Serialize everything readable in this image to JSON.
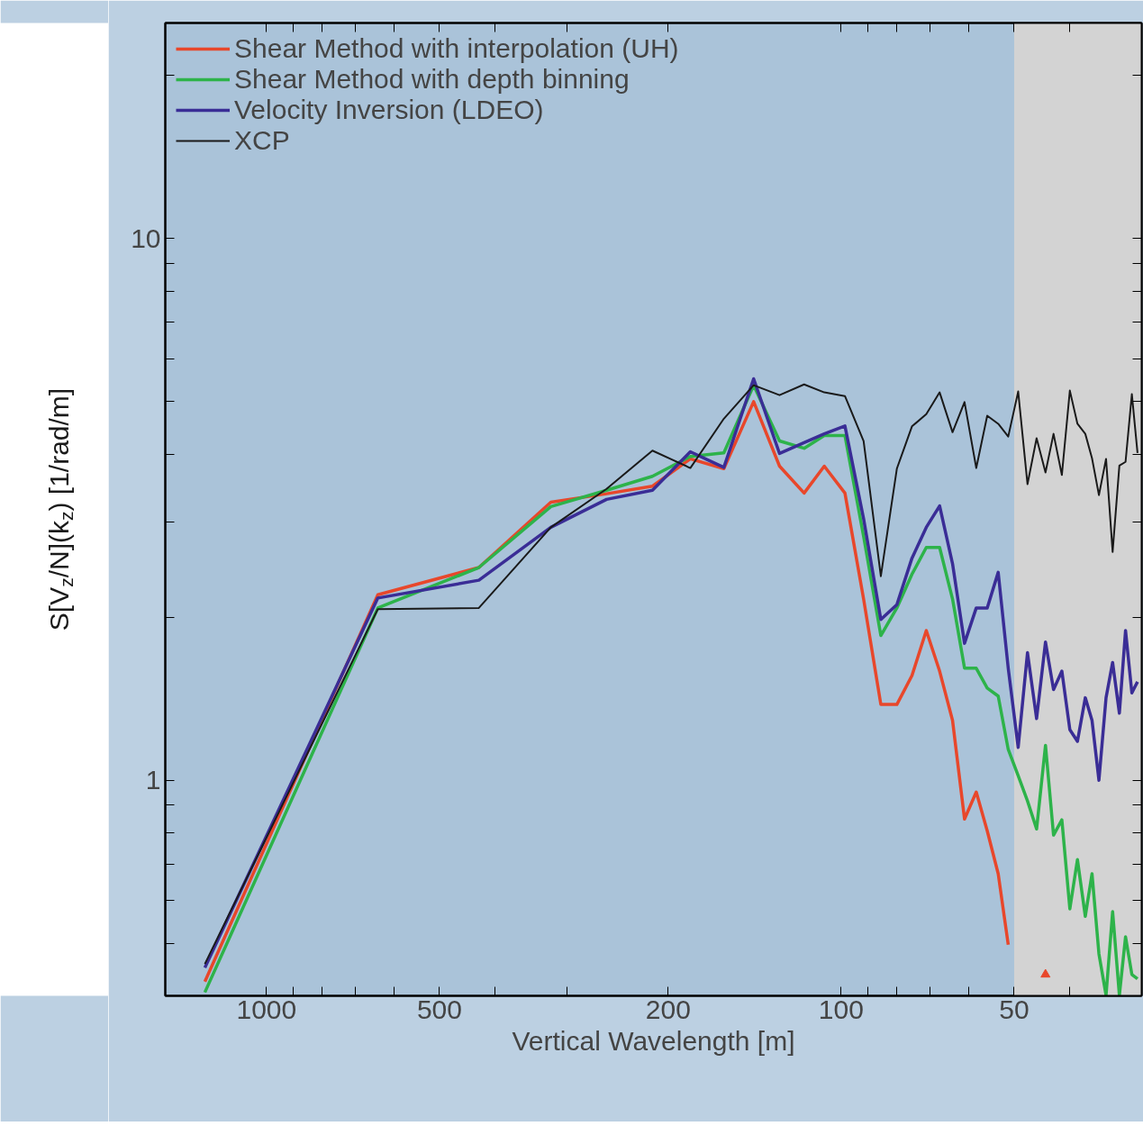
{
  "chart_data": {
    "type": "line",
    "xlabel": "Vertical Wavelength [m]",
    "ylabel": "S[V$_{z}$/N](k$_{z}$) [1/rad/m]",
    "log": "xy",
    "grid": false,
    "legend": "top left",
    "marker": "none",
    "line_style": "solid",
    "xlim": [
      1500,
      30
    ],
    "ylim": [
      0.4,
      25
    ],
    "xticks": [
      1000,
      500,
      200,
      100,
      50,
      {
        "value": 900,
        "label": null
      },
      {
        "value": 800,
        "label": null
      },
      {
        "value": 700,
        "label": null
      },
      {
        "value": 600,
        "label": null
      },
      {
        "value": 400,
        "label": null
      },
      {
        "value": 300,
        "label": null
      },
      {
        "value": 90,
        "label": null
      },
      {
        "value": 80,
        "label": null
      },
      {
        "value": 70,
        "label": null
      },
      {
        "value": 60,
        "label": null
      },
      {
        "value": 40,
        "label": null
      }
    ],
    "yticks": [
      1,
      10,
      {
        "value": 0.5,
        "label": null
      },
      {
        "value": 0.6,
        "label": null
      },
      {
        "value": 0.7,
        "label": null
      },
      {
        "value": 0.8,
        "label": null
      },
      {
        "value": 0.9,
        "label": null
      },
      {
        "value": 2,
        "label": null
      },
      {
        "value": 3,
        "label": null
      },
      {
        "value": 4,
        "label": null
      },
      {
        "value": 5,
        "label": null
      },
      {
        "value": 6,
        "label": null
      },
      {
        "value": 7,
        "label": null
      },
      {
        "value": 8,
        "label": null
      },
      {
        "value": 9,
        "label": null
      },
      {
        "value": 20,
        "label": null
      }
    ],
    "bands": [
      {
        "axis": "x",
        "from": 50,
        "to": 30,
        "color": "#d3d3d3"
      }
    ],
    "x": [
      1280,
      640,
      427,
      320,
      256,
      213,
      183,
      160,
      142,
      128,
      116,
      107,
      98.5,
      91.4,
      85.3,
      80,
      75.3,
      71.1,
      67.4,
      64,
      61,
      58.2,
      55.7,
      53.3,
      51.2,
      49.2,
      47.4,
      45.7,
      44.1,
      42.7,
      41.3,
      40,
      38.8,
      37.6,
      36.6,
      35.6,
      34.6,
      33.7,
      32.8,
      32,
      31.2,
      30.5
    ],
    "series": [
      {
        "name": "Shear Method with interpolation (UH)",
        "color": "#e8472b",
        "values": [
          0.425,
          2.2,
          2.47,
          3.26,
          3.38,
          3.49,
          3.92,
          3.76,
          5.0,
          3.8,
          3.39,
          3.8,
          3.39,
          2.16,
          1.38,
          1.38,
          1.56,
          1.89,
          1.59,
          1.29,
          0.848,
          0.951,
          0.807,
          0.672,
          0.497,
          null,
          null,
          null,
          0.438,
          null,
          null,
          null,
          null,
          null,
          null,
          null,
          null,
          null,
          null,
          null,
          null,
          null
        ]
      },
      {
        "name": "Shear Method with depth binning",
        "color": "#2db34a",
        "values": [
          0.406,
          2.08,
          2.47,
          3.2,
          3.43,
          3.64,
          3.96,
          4.02,
          5.36,
          4.23,
          4.1,
          4.33,
          4.33,
          2.82,
          1.85,
          2.08,
          2.4,
          2.69,
          2.69,
          2.16,
          1.61,
          1.61,
          1.48,
          1.43,
          1.14,
          1.02,
          0.916,
          0.813,
          1.16,
          0.792,
          0.845,
          0.579,
          0.714,
          0.561,
          0.672,
          0.478,
          0.401,
          0.572,
          0.401,
          0.514,
          0.438,
          0.43
        ]
      },
      {
        "name": "Velocity Inversion (LDEO)",
        "color": "#3a2d96",
        "values": [
          0.451,
          2.17,
          2.34,
          2.93,
          3.3,
          3.43,
          4.04,
          3.78,
          5.51,
          4.01,
          4.2,
          4.36,
          4.51,
          3.04,
          1.98,
          2.11,
          2.57,
          2.93,
          3.21,
          2.51,
          1.79,
          2.08,
          2.08,
          2.42,
          1.61,
          1.15,
          1.72,
          1.3,
          1.8,
          1.47,
          1.59,
          1.24,
          1.18,
          1.42,
          1.29,
          1.0,
          1.42,
          1.65,
          1.33,
          1.89,
          1.45,
          1.52
        ]
      },
      {
        "name": "XCP",
        "color": "#1a1a1a",
        "values": [
          0.458,
          2.07,
          2.08,
          2.93,
          3.45,
          4.06,
          3.77,
          4.65,
          5.36,
          5.14,
          5.38,
          5.2,
          5.12,
          4.23,
          2.38,
          3.76,
          4.5,
          4.74,
          5.2,
          4.39,
          4.99,
          3.77,
          4.71,
          4.55,
          4.31,
          5.22,
          3.52,
          4.28,
          3.7,
          4.36,
          3.66,
          5.24,
          4.55,
          4.36,
          3.93,
          3.36,
          3.92,
          2.64,
          3.81,
          3.87,
          5.16,
          4.02
        ]
      }
    ]
  }
}
